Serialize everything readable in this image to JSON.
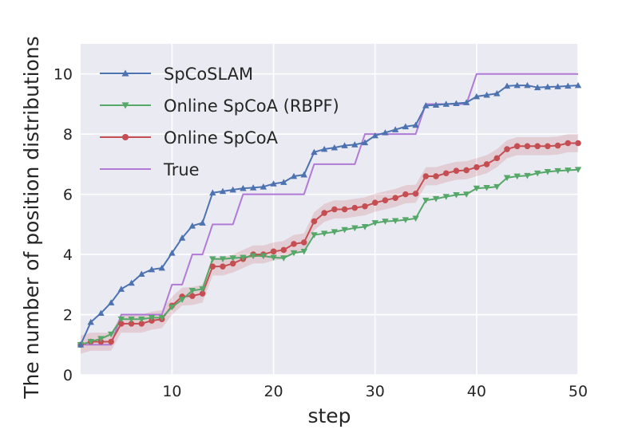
{
  "chart_data": {
    "type": "line",
    "xlabel": "step",
    "ylabel": "The number of position distributions",
    "xlim": [
      1,
      50
    ],
    "ylim": [
      0,
      11
    ],
    "xticks": [
      10,
      20,
      30,
      40,
      50
    ],
    "yticks": [
      0,
      2,
      4,
      6,
      8,
      10
    ],
    "grid": true,
    "background": "#eaeaf2",
    "legend_position": "top-left",
    "x": [
      1,
      2,
      3,
      4,
      5,
      6,
      7,
      8,
      9,
      10,
      11,
      12,
      13,
      14,
      15,
      16,
      17,
      18,
      19,
      20,
      21,
      22,
      23,
      24,
      25,
      26,
      27,
      28,
      29,
      30,
      31,
      32,
      33,
      34,
      35,
      36,
      37,
      38,
      39,
      40,
      41,
      42,
      43,
      44,
      45,
      46,
      47,
      48,
      49,
      50
    ],
    "series": [
      {
        "name": "SpCoSLAM",
        "color": "#4c72b0",
        "marker": "triangle-up",
        "values": [
          1.0,
          1.75,
          2.05,
          2.4,
          2.85,
          3.05,
          3.35,
          3.5,
          3.55,
          4.05,
          4.55,
          4.95,
          5.05,
          6.05,
          6.1,
          6.15,
          6.2,
          6.22,
          6.25,
          6.35,
          6.4,
          6.6,
          6.65,
          7.4,
          7.5,
          7.55,
          7.62,
          7.65,
          7.72,
          7.95,
          8.05,
          8.15,
          8.25,
          8.3,
          8.95,
          8.97,
          9.0,
          9.02,
          9.05,
          9.25,
          9.3,
          9.35,
          9.6,
          9.62,
          9.62,
          9.55,
          9.57,
          9.58,
          9.6,
          9.62
        ]
      },
      {
        "name": "Online SpCoA (RBPF)",
        "color": "#55a868",
        "marker": "triangle-down",
        "values": [
          1.0,
          1.1,
          1.2,
          1.35,
          1.85,
          1.85,
          1.85,
          1.9,
          1.9,
          2.25,
          2.5,
          2.8,
          2.85,
          3.85,
          3.85,
          3.88,
          3.9,
          3.95,
          3.95,
          3.9,
          3.88,
          4.05,
          4.1,
          4.65,
          4.7,
          4.75,
          4.82,
          4.88,
          4.92,
          5.05,
          5.1,
          5.12,
          5.15,
          5.2,
          5.8,
          5.85,
          5.92,
          5.98,
          6.0,
          6.2,
          6.22,
          6.25,
          6.55,
          6.6,
          6.62,
          6.7,
          6.75,
          6.78,
          6.8,
          6.82
        ]
      },
      {
        "name": "Online SpCoA",
        "color": "#c44e52",
        "marker": "circle",
        "band": 0.3,
        "values": [
          1.0,
          1.1,
          1.1,
          1.1,
          1.7,
          1.7,
          1.7,
          1.8,
          1.85,
          2.3,
          2.6,
          2.62,
          2.7,
          3.6,
          3.6,
          3.7,
          3.85,
          4.0,
          4.0,
          4.1,
          4.15,
          4.35,
          4.4,
          5.1,
          5.38,
          5.5,
          5.5,
          5.55,
          5.6,
          5.72,
          5.8,
          5.88,
          6.0,
          6.02,
          6.6,
          6.6,
          6.7,
          6.78,
          6.8,
          6.9,
          7.0,
          7.2,
          7.5,
          7.6,
          7.6,
          7.6,
          7.6,
          7.62,
          7.7,
          7.7
        ]
      },
      {
        "name": "True",
        "color": "#b07ad6",
        "marker": "none",
        "values": [
          1,
          1,
          1,
          1,
          2,
          2,
          2,
          2,
          2,
          3,
          3,
          4,
          4,
          5,
          5,
          5,
          6,
          6,
          6,
          6,
          6,
          6,
          6,
          7,
          7,
          7,
          7,
          7,
          8,
          8,
          8,
          8,
          8,
          8,
          9,
          9,
          9,
          9,
          9,
          10,
          10,
          10,
          10,
          10,
          10,
          10,
          10,
          10,
          10,
          10
        ]
      }
    ]
  }
}
